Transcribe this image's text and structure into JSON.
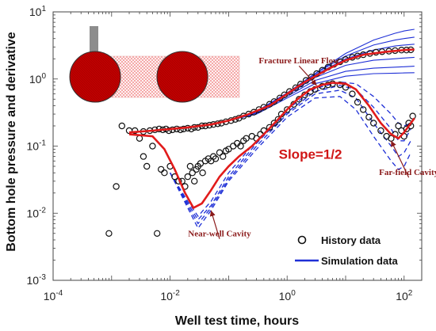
{
  "colors": {
    "history": "#111111",
    "simulation": "#1e2fd6",
    "fit": "#e11b1b",
    "cavity": "#c00000",
    "fracture": "#f3b9b9",
    "well": "#888888"
  },
  "chart_data": {
    "type": "scatter",
    "xscale": "log",
    "yscale": "log",
    "xlim": [
      0.0001,
      200
    ],
    "ylim": [
      0.001,
      10
    ],
    "xlabel": "Well test time, hours",
    "ylabel": "Bottom hole pressure and derivative",
    "xticks": [
      {
        "value": 0.0001,
        "base": "10",
        "exp": "-4"
      },
      {
        "value": 0.01,
        "base": "10",
        "exp": "-2"
      },
      {
        "value": 1,
        "base": "10",
        "exp": "0"
      },
      {
        "value": 100,
        "base": "10",
        "exp": "2"
      }
    ],
    "yticks": [
      {
        "value": 0.001,
        "base": "10",
        "exp": "-3"
      },
      {
        "value": 0.01,
        "base": "10",
        "exp": "-2"
      },
      {
        "value": 0.1,
        "base": "10",
        "exp": "-1"
      },
      {
        "value": 1,
        "base": "10",
        "exp": "0"
      },
      {
        "value": 10,
        "base": "10",
        "exp": "1"
      }
    ],
    "legend": {
      "placement": "bottom-right",
      "entries": [
        {
          "name": "History data",
          "marker": "circle"
        },
        {
          "name": "Simulation data",
          "marker": "line"
        }
      ]
    },
    "annotations": [
      {
        "text": "Fracture Linear Flow",
        "x": 1.6,
        "y": 1.7,
        "style": "serif",
        "arrow_to": [
          3.2,
          0.8
        ]
      },
      {
        "text": "Slope=1/2",
        "x": 2.5,
        "y": 0.065,
        "style": "bold"
      },
      {
        "text": "Far-field Cavity",
        "x": 120,
        "y": 0.037,
        "style": "serif",
        "arrow_to": [
          60,
          0.12
        ]
      },
      {
        "text": "Near-well Cavity",
        "x": 0.07,
        "y": 0.0045,
        "style": "serif",
        "arrow_to": [
          0.05,
          0.011
        ]
      }
    ],
    "history_pressure": {
      "name": "History data",
      "x": [
        0.0025,
        0.0035,
        0.0045,
        0.0055,
        0.0065,
        0.0075,
        0.0085,
        0.0095,
        0.011,
        0.013,
        0.015,
        0.017,
        0.02,
        0.023,
        0.026,
        0.03,
        0.035,
        0.04,
        0.047,
        0.055,
        0.065,
        0.075,
        0.09,
        0.11,
        0.13,
        0.15,
        0.18,
        0.22,
        0.27,
        0.33,
        0.4,
        0.5,
        0.6,
        0.75,
        0.9,
        1.1,
        1.4,
        1.7,
        2.1,
        2.6,
        3.2,
        4,
        5,
        6.3,
        8,
        10,
        13,
        16,
        20,
        26,
        33,
        42,
        55,
        70,
        90,
        110,
        130
      ],
      "y": [
        0.17,
        0.165,
        0.17,
        0.175,
        0.18,
        0.175,
        0.18,
        0.17,
        0.175,
        0.18,
        0.175,
        0.18,
        0.185,
        0.18,
        0.19,
        0.19,
        0.2,
        0.2,
        0.205,
        0.21,
        0.215,
        0.22,
        0.23,
        0.24,
        0.25,
        0.26,
        0.28,
        0.3,
        0.32,
        0.35,
        0.38,
        0.42,
        0.46,
        0.52,
        0.58,
        0.65,
        0.74,
        0.84,
        0.95,
        1.07,
        1.2,
        1.35,
        1.5,
        1.65,
        1.8,
        1.95,
        2.1,
        2.2,
        2.3,
        2.4,
        2.5,
        2.55,
        2.6,
        2.65,
        2.7,
        2.7,
        2.72
      ]
    },
    "history_derivative": {
      "name": "History data",
      "x": [
        0.0009,
        0.0012,
        0.0015,
        0.002,
        0.003,
        0.0035,
        0.004,
        0.005,
        0.006,
        0.007,
        0.008,
        0.01,
        0.012,
        0.014,
        0.016,
        0.018,
        0.02,
        0.022,
        0.024,
        0.026,
        0.028,
        0.03,
        0.033,
        0.036,
        0.04,
        0.045,
        0.05,
        0.055,
        0.06,
        0.07,
        0.08,
        0.09,
        0.1,
        0.12,
        0.14,
        0.16,
        0.18,
        0.2,
        0.25,
        0.3,
        0.35,
        0.4,
        0.5,
        0.6,
        0.7,
        0.8,
        1,
        1.3,
        1.6,
        2,
        2.5,
        3,
        4,
        5,
        6,
        8,
        10,
        13,
        16,
        20,
        25,
        30,
        40,
        50,
        60,
        70,
        80,
        90,
        100,
        110,
        120,
        130,
        140
      ],
      "y": [
        0.005,
        0.025,
        0.2,
        0.17,
        0.13,
        0.07,
        0.05,
        0.1,
        0.005,
        0.045,
        0.04,
        0.05,
        0.035,
        0.03,
        0.03,
        0.025,
        0.035,
        0.05,
        0.04,
        0.03,
        0.045,
        0.05,
        0.055,
        0.04,
        0.06,
        0.065,
        0.06,
        0.07,
        0.065,
        0.08,
        0.07,
        0.085,
        0.09,
        0.1,
        0.11,
        0.1,
        0.12,
        0.13,
        0.14,
        0.13,
        0.15,
        0.17,
        0.19,
        0.22,
        0.25,
        0.3,
        0.35,
        0.42,
        0.5,
        0.58,
        0.65,
        0.7,
        0.78,
        0.82,
        0.85,
        0.82,
        0.75,
        0.6,
        0.45,
        0.35,
        0.27,
        0.22,
        0.17,
        0.14,
        0.13,
        0.15,
        0.2,
        0.17,
        0.14,
        0.18,
        0.22,
        0.2,
        0.28
      ]
    },
    "fit_pressure": {
      "x": [
        0.002,
        0.005,
        0.01,
        0.02,
        0.05,
        0.1,
        0.2,
        0.5,
        1,
        2,
        5,
        10,
        20,
        50,
        100,
        150
      ],
      "y": [
        0.16,
        0.17,
        0.18,
        0.19,
        0.21,
        0.24,
        0.29,
        0.4,
        0.6,
        0.9,
        1.4,
        1.9,
        2.3,
        2.55,
        2.7,
        2.75
      ]
    },
    "fit_derivative": {
      "x": [
        0.002,
        0.005,
        0.008,
        0.012,
        0.018,
        0.025,
        0.035,
        0.05,
        0.07,
        0.1,
        0.15,
        0.25,
        0.4,
        0.7,
        1,
        1.5,
        2.5,
        4,
        6,
        10,
        15,
        25,
        40,
        60,
        80,
        100,
        130,
        150
      ],
      "y": [
        0.15,
        0.14,
        0.09,
        0.045,
        0.02,
        0.012,
        0.014,
        0.022,
        0.035,
        0.05,
        0.07,
        0.1,
        0.15,
        0.25,
        0.35,
        0.5,
        0.7,
        0.82,
        0.88,
        0.85,
        0.7,
        0.4,
        0.22,
        0.15,
        0.13,
        0.16,
        0.22,
        0.26
      ]
    },
    "simulation_pressure": {
      "name": "Simulation data",
      "x": [
        0.002,
        0.01,
        0.05,
        0.1,
        0.3,
        1,
        3,
        10,
        30,
        70,
        100,
        150
      ],
      "series_y": [
        [
          0.16,
          0.18,
          0.21,
          0.24,
          0.33,
          0.62,
          1.2,
          2.4,
          3.8,
          4.8,
          5.2,
          5.5
        ],
        [
          0.16,
          0.18,
          0.21,
          0.24,
          0.33,
          0.62,
          1.2,
          2.2,
          3.2,
          3.8,
          4.0,
          4.2
        ],
        [
          0.16,
          0.18,
          0.21,
          0.24,
          0.33,
          0.6,
          1.15,
          2.0,
          2.7,
          3.1,
          3.2,
          3.3
        ],
        [
          0.16,
          0.18,
          0.21,
          0.24,
          0.32,
          0.58,
          1.05,
          1.6,
          1.9,
          2.0,
          2.05,
          2.1
        ],
        [
          0.16,
          0.18,
          0.21,
          0.24,
          0.31,
          0.55,
          0.95,
          1.3,
          1.45,
          1.5,
          1.52,
          1.55
        ],
        [
          0.16,
          0.18,
          0.21,
          0.24,
          0.3,
          0.52,
          0.85,
          1.1,
          1.2,
          1.22,
          1.23,
          1.24
        ]
      ]
    },
    "simulation_derivative": {
      "name": "Simulation data",
      "x": [
        0.01,
        0.02,
        0.03,
        0.05,
        0.1,
        0.3,
        1,
        3,
        8,
        15,
        30,
        60,
        80,
        100,
        130
      ],
      "series_y": [
        [
          0.04,
          0.015,
          0.009,
          0.015,
          0.04,
          0.12,
          0.35,
          0.72,
          0.9,
          0.85,
          0.55,
          0.3,
          0.22,
          0.2,
          0.22
        ],
        [
          0.04,
          0.014,
          0.008,
          0.013,
          0.035,
          0.11,
          0.32,
          0.65,
          0.8,
          0.7,
          0.38,
          0.18,
          0.12,
          0.12,
          0.18
        ],
        [
          0.04,
          0.013,
          0.007,
          0.012,
          0.032,
          0.1,
          0.3,
          0.6,
          0.68,
          0.52,
          0.22,
          0.1,
          0.07,
          0.08,
          0.12
        ],
        [
          0.04,
          0.012,
          0.006,
          0.011,
          0.03,
          0.09,
          0.27,
          0.52,
          0.55,
          0.35,
          0.14,
          0.06,
          0.045,
          0.05,
          0.08
        ]
      ]
    }
  }
}
